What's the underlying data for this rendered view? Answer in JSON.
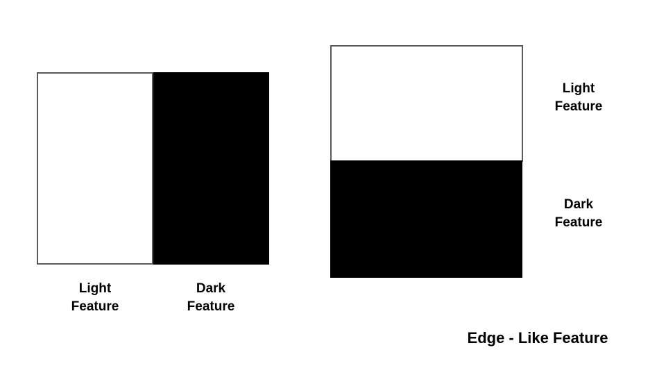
{
  "colors": {
    "light_fill": "#ffffff",
    "light_border": "#595959",
    "dark_fill": "#000000",
    "text": "#000000",
    "background": "#ffffff"
  },
  "vertical_edge": {
    "light_label": [
      "Light",
      "Feature"
    ],
    "dark_label": [
      "Dark",
      "Feature"
    ]
  },
  "horizontal_edge": {
    "light_label": [
      "Light",
      "Feature"
    ],
    "dark_label": [
      "Dark",
      "Feature"
    ]
  },
  "caption": "Edge - Like Feature"
}
